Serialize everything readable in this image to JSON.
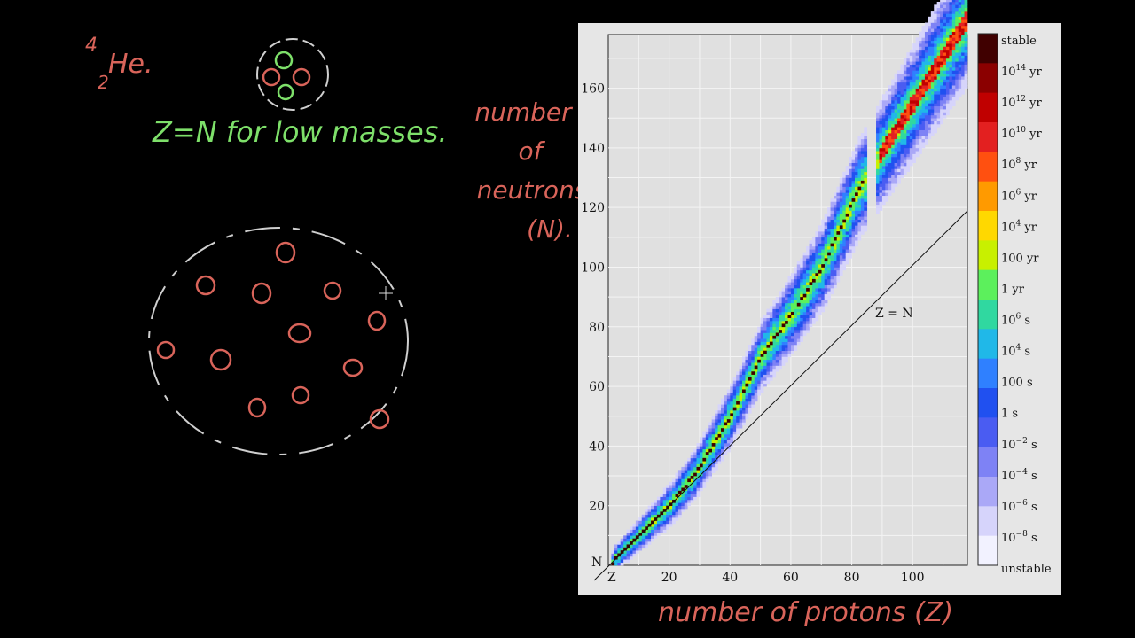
{
  "annotations": {
    "he_mass": "4",
    "he_charge": "2",
    "he_symbol": "He.",
    "zn_note": "Z=N for low masses.",
    "y_hand_label": [
      "number",
      "of",
      "neutrons",
      "(N)."
    ],
    "x_hand_label": "number of protons (Z)",
    "colors": {
      "red_ink": "#d9645a",
      "green_ink": "#7ee06a",
      "white_ink": "#cfcfcf"
    }
  },
  "chart_data": {
    "type": "heatmap",
    "x_axis": {
      "label": "Z",
      "ticks": [
        20,
        40,
        60,
        80,
        100
      ],
      "range": [
        0,
        118
      ]
    },
    "y_axis": {
      "label": "N",
      "ticks": [
        20,
        40,
        60,
        80,
        100,
        120,
        140,
        160
      ],
      "range": [
        0,
        178
      ]
    },
    "line_label": "Z = N",
    "grid": true,
    "stable_line": [
      [
        1,
        0
      ],
      [
        2,
        2
      ],
      [
        6,
        6
      ],
      [
        10,
        10
      ],
      [
        20,
        20
      ],
      [
        28,
        30
      ],
      [
        40,
        50
      ],
      [
        50,
        70
      ],
      [
        60,
        84
      ],
      [
        70,
        100
      ],
      [
        82,
        126
      ]
    ],
    "heavy_island": [
      [
        88,
        136
      ],
      [
        92,
        142
      ],
      [
        96,
        148
      ]
    ],
    "colorbar": {
      "labels": [
        {
          "base": "stable",
          "exp": ""
        },
        {
          "base": "10",
          "exp": "14",
          "unit": " yr"
        },
        {
          "base": "10",
          "exp": "12",
          "unit": " yr"
        },
        {
          "base": "10",
          "exp": "10",
          "unit": " yr"
        },
        {
          "base": "10",
          "exp": "8",
          "unit": " yr"
        },
        {
          "base": "10",
          "exp": "6",
          "unit": " yr"
        },
        {
          "base": "10",
          "exp": "4",
          "unit": " yr"
        },
        {
          "base": "100 yr",
          "exp": ""
        },
        {
          "base": "1 yr",
          "exp": ""
        },
        {
          "base": "10",
          "exp": "6",
          "unit": " s"
        },
        {
          "base": "10",
          "exp": "4",
          "unit": " s"
        },
        {
          "base": "100 s",
          "exp": ""
        },
        {
          "base": "1 s",
          "exp": ""
        },
        {
          "base": "10",
          "exp": "−2",
          "unit": " s"
        },
        {
          "base": "10",
          "exp": "−4",
          "unit": " s"
        },
        {
          "base": "10",
          "exp": "−6",
          "unit": " s"
        },
        {
          "base": "10",
          "exp": "−8",
          "unit": " s"
        },
        {
          "base": "unstable",
          "exp": ""
        }
      ],
      "colors": [
        "#400000",
        "#8b0000",
        "#c00000",
        "#e32020",
        "#ff5010",
        "#ff9a00",
        "#ffd800",
        "#c8f000",
        "#5cf05c",
        "#30d8a0",
        "#20b8e8",
        "#2f80ff",
        "#2050f0",
        "#4a5cf2",
        "#7e82f5",
        "#aaa8f7",
        "#d6d4fb",
        "#f2f2ff"
      ]
    }
  }
}
